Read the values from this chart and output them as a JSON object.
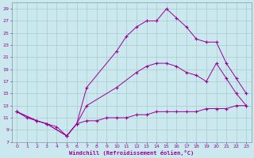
{
  "xlabel": "Windchill (Refroidissement éolien,°C)",
  "background_color": "#cbe8ee",
  "grid_color": "#a8cccc",
  "line_color": "#990099",
  "spine_color": "#7799aa",
  "xlim": [
    -0.5,
    23.5
  ],
  "ylim": [
    7,
    30
  ],
  "yticks": [
    7,
    9,
    11,
    13,
    15,
    17,
    19,
    21,
    23,
    25,
    27,
    29
  ],
  "xticks": [
    0,
    1,
    2,
    3,
    4,
    5,
    6,
    7,
    8,
    9,
    10,
    11,
    12,
    13,
    14,
    15,
    16,
    17,
    18,
    19,
    20,
    21,
    22,
    23
  ],
  "series": [
    {
      "x": [
        0,
        1,
        2,
        3,
        4,
        5,
        6,
        7,
        8,
        9,
        10,
        11,
        12,
        13,
        14,
        15,
        16,
        17,
        18,
        19,
        20,
        21,
        22,
        23
      ],
      "y": [
        12,
        11,
        10.5,
        10,
        9.5,
        8,
        10,
        10.5,
        10.5,
        11,
        11,
        11,
        11.5,
        11.5,
        12,
        12,
        12,
        12,
        12,
        12.5,
        12.5,
        12.5,
        13,
        13
      ]
    },
    {
      "x": [
        0,
        2,
        3,
        5,
        6,
        7,
        10,
        12,
        13,
        14,
        15,
        16,
        17,
        18,
        19,
        20,
        21,
        22,
        23
      ],
      "y": [
        12,
        10.5,
        10,
        8,
        10,
        13,
        16,
        18.5,
        19.5,
        20,
        20,
        19.5,
        18.5,
        18,
        17,
        20,
        17.5,
        15,
        13
      ]
    },
    {
      "x": [
        0,
        2,
        3,
        5,
        6,
        7,
        10,
        11,
        12,
        13,
        14,
        15,
        16,
        17,
        18,
        19,
        20,
        21,
        22,
        23
      ],
      "y": [
        12,
        10.5,
        10,
        8,
        10,
        16,
        22,
        24.5,
        26,
        27,
        27,
        29,
        27.5,
        26,
        24,
        23.5,
        23.5,
        20,
        17.5,
        15
      ]
    }
  ]
}
